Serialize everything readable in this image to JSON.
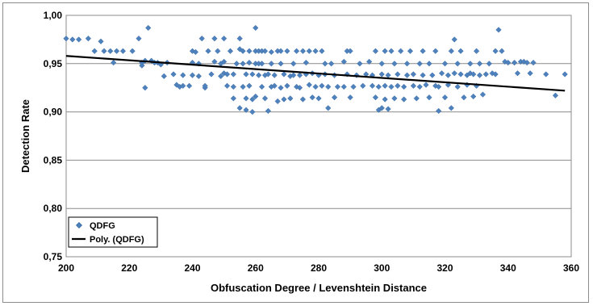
{
  "chart_data": {
    "type": "scatter",
    "title": "",
    "xlabel": "Obfuscation Degree / Levenshtein Distance",
    "ylabel": "Detection Rate",
    "xlim": [
      200,
      360
    ],
    "ylim": [
      0.75,
      1.0
    ],
    "x_ticks": [
      "200",
      "220",
      "240",
      "260",
      "280",
      "300",
      "320",
      "340",
      "360"
    ],
    "y_ticks": [
      "0,75",
      "0,80",
      "0,85",
      "0,90",
      "0,95",
      "1,00"
    ],
    "grid": "horizontal",
    "legend_position": "bottom-left",
    "legend": [
      "QDFG",
      "Poly. (QDFG)"
    ],
    "colors": {
      "marker": "#4f81bd",
      "marker_edge": "#3a6ea5",
      "trendline": "#000000",
      "grid": "#8c8c8c"
    },
    "series": [
      {
        "name": "QDFG",
        "marker": "diamond",
        "points": [
          [
            200,
            0.976
          ],
          [
            202,
            0.975
          ],
          [
            204,
            0.975
          ],
          [
            207,
            0.976
          ],
          [
            209,
            0.963
          ],
          [
            211,
            0.973
          ],
          [
            212,
            0.963
          ],
          [
            214,
            0.963
          ],
          [
            215,
            0.951
          ],
          [
            216,
            0.963
          ],
          [
            218,
            0.963
          ],
          [
            221,
            0.963
          ],
          [
            223,
            0.976
          ],
          [
            224,
            0.951
          ],
          [
            224,
            0.948
          ],
          [
            225,
            0.925
          ],
          [
            225,
            0.953
          ],
          [
            226,
            0.987
          ],
          [
            227,
            0.953
          ],
          [
            228,
            0.951
          ],
          [
            229,
            0.951
          ],
          [
            230,
            0.949
          ],
          [
            231,
            0.937
          ],
          [
            232,
            0.951
          ],
          [
            234,
            0.939
          ],
          [
            235,
            0.928
          ],
          [
            236,
            0.926
          ],
          [
            237,
            0.927
          ],
          [
            237,
            0.938
          ],
          [
            239,
            0.927
          ],
          [
            240,
            0.938
          ],
          [
            240,
            0.951
          ],
          [
            240,
            0.963
          ],
          [
            241,
            0.962
          ],
          [
            242,
            0.937
          ],
          [
            242,
            0.95
          ],
          [
            243,
            0.976
          ],
          [
            244,
            0.925
          ],
          [
            244,
            0.927
          ],
          [
            245,
            0.963
          ],
          [
            246,
            0.939
          ],
          [
            247,
            0.952
          ],
          [
            247,
            0.976
          ],
          [
            248,
            0.963
          ],
          [
            249,
            0.95
          ],
          [
            249,
            0.937
          ],
          [
            250,
            0.94
          ],
          [
            250,
            0.952
          ],
          [
            250,
            0.976
          ],
          [
            251,
            0.927
          ],
          [
            251,
            0.939
          ],
          [
            252,
            0.963
          ],
          [
            253,
            0.914
          ],
          [
            253,
            0.926
          ],
          [
            253,
            0.939
          ],
          [
            254,
            0.95
          ],
          [
            255,
            0.965
          ],
          [
            255,
            0.904
          ],
          [
            255,
            0.976
          ],
          [
            256,
            0.95
          ],
          [
            256,
            0.963
          ],
          [
            256,
            0.926
          ],
          [
            257,
            0.902
          ],
          [
            257,
            0.914
          ],
          [
            257,
            0.939
          ],
          [
            258,
            0.963
          ],
          [
            258,
            0.951
          ],
          [
            258,
            0.927
          ],
          [
            259,
            0.9
          ],
          [
            259,
            0.913
          ],
          [
            259,
            0.939
          ],
          [
            260,
            0.963
          ],
          [
            260,
            0.95
          ],
          [
            260,
            0.987
          ],
          [
            260,
            0.916
          ],
          [
            261,
            0.963
          ],
          [
            261,
            0.95
          ],
          [
            261,
            0.938
          ],
          [
            262,
            0.963
          ],
          [
            262,
            0.926
          ],
          [
            262,
            0.95
          ],
          [
            263,
            0.914
          ],
          [
            263,
            0.938
          ],
          [
            263,
            0.963
          ],
          [
            264,
            0.901
          ],
          [
            264,
            0.939
          ],
          [
            265,
            0.962
          ],
          [
            265,
            0.95
          ],
          [
            265,
            0.926
          ],
          [
            266,
            0.927
          ],
          [
            266,
            0.938
          ],
          [
            267,
            0.963
          ],
          [
            267,
            0.911
          ],
          [
            268,
            0.925
          ],
          [
            268,
            0.963
          ],
          [
            268,
            0.95
          ],
          [
            269,
            0.913
          ],
          [
            269,
            0.939
          ],
          [
            270,
            0.963
          ],
          [
            270,
            0.927
          ],
          [
            271,
            0.914
          ],
          [
            271,
            0.937
          ],
          [
            272,
            0.938
          ],
          [
            272,
            0.95
          ],
          [
            273,
            0.926
          ],
          [
            273,
            0.963
          ],
          [
            274,
            0.925
          ],
          [
            274,
            0.938
          ],
          [
            275,
            0.913
          ],
          [
            275,
            0.963
          ],
          [
            276,
            0.951
          ],
          [
            276,
            0.939
          ],
          [
            277,
            0.963
          ],
          [
            277,
            0.928
          ],
          [
            278,
            0.94
          ],
          [
            278,
            0.915
          ],
          [
            279,
            0.963
          ],
          [
            279,
            0.926
          ],
          [
            280,
            0.938
          ],
          [
            280,
            0.914
          ],
          [
            281,
            0.963
          ],
          [
            281,
            0.927
          ],
          [
            282,
            0.95
          ],
          [
            282,
            0.939
          ],
          [
            283,
            0.904
          ],
          [
            283,
            0.926
          ],
          [
            284,
            0.95
          ],
          [
            285,
            0.915
          ],
          [
            285,
            0.938
          ],
          [
            286,
            0.926
          ],
          [
            288,
            0.952
          ],
          [
            288,
            0.926
          ],
          [
            289,
            0.963
          ],
          [
            289,
            0.939
          ],
          [
            290,
            0.915
          ],
          [
            290,
            0.963
          ],
          [
            291,
            0.926
          ],
          [
            292,
            0.938
          ],
          [
            293,
            0.95
          ],
          [
            294,
            0.927
          ],
          [
            295,
            0.939
          ],
          [
            296,
            0.952
          ],
          [
            297,
            0.927
          ],
          [
            297,
            0.938
          ],
          [
            298,
            0.963
          ],
          [
            298,
            0.915
          ],
          [
            299,
            0.902
          ],
          [
            299,
            0.926
          ],
          [
            300,
            0.939
          ],
          [
            300,
            0.95
          ],
          [
            300,
            0.904
          ],
          [
            301,
            0.963
          ],
          [
            301,
            0.913
          ],
          [
            301,
            0.927
          ],
          [
            302,
            0.938
          ],
          [
            302,
            0.903
          ],
          [
            303,
            0.963
          ],
          [
            303,
            0.926
          ],
          [
            304,
            0.914
          ],
          [
            304,
            0.95
          ],
          [
            305,
            0.927
          ],
          [
            305,
            0.939
          ],
          [
            306,
            0.963
          ],
          [
            307,
            0.926
          ],
          [
            307,
            0.913
          ],
          [
            308,
            0.95
          ],
          [
            308,
            0.938
          ],
          [
            309,
            0.963
          ],
          [
            310,
            0.927
          ],
          [
            310,
            0.939
          ],
          [
            311,
            0.914
          ],
          [
            312,
            0.95
          ],
          [
            312,
            0.926
          ],
          [
            313,
            0.963
          ],
          [
            313,
            0.938
          ],
          [
            314,
            0.928
          ],
          [
            315,
            0.915
          ],
          [
            315,
            0.95
          ],
          [
            316,
            0.938
          ],
          [
            317,
            0.963
          ],
          [
            317,
            0.927
          ],
          [
            318,
            0.901
          ],
          [
            318,
            0.926
          ],
          [
            319,
            0.94
          ],
          [
            320,
            0.95
          ],
          [
            320,
            0.915
          ],
          [
            321,
            0.938
          ],
          [
            321,
            0.928
          ],
          [
            322,
            0.904
          ],
          [
            322,
            0.963
          ],
          [
            323,
            0.975
          ],
          [
            323,
            0.94
          ],
          [
            324,
            0.926
          ],
          [
            324,
            0.95
          ],
          [
            325,
            0.939
          ],
          [
            325,
            0.963
          ],
          [
            326,
            0.915
          ],
          [
            327,
            0.938
          ],
          [
            327,
            0.928
          ],
          [
            328,
            0.95
          ],
          [
            328,
            0.94
          ],
          [
            329,
            0.916
          ],
          [
            329,
            0.939
          ],
          [
            330,
            0.927
          ],
          [
            330,
            0.963
          ],
          [
            331,
            0.95
          ],
          [
            331,
            0.938
          ],
          [
            332,
            0.918
          ],
          [
            333,
            0.939
          ],
          [
            334,
            0.95
          ],
          [
            335,
            0.94
          ],
          [
            336,
            0.963
          ],
          [
            336,
            0.939
          ],
          [
            337,
            0.985
          ],
          [
            338,
            0.963
          ],
          [
            339,
            0.952
          ],
          [
            340,
            0.951
          ],
          [
            342,
            0.951
          ],
          [
            343,
            0.94
          ],
          [
            344,
            0.952
          ],
          [
            345,
            0.952
          ],
          [
            346,
            0.951
          ],
          [
            347,
            0.94
          ],
          [
            348,
            0.951
          ],
          [
            352,
            0.939
          ],
          [
            355,
            0.917
          ],
          [
            358,
            0.939
          ]
        ]
      }
    ],
    "trendline": {
      "name": "Poly. (QDFG)",
      "type": "polynomial",
      "x": [
        200,
        358
      ],
      "y": [
        0.958,
        0.922
      ]
    }
  }
}
